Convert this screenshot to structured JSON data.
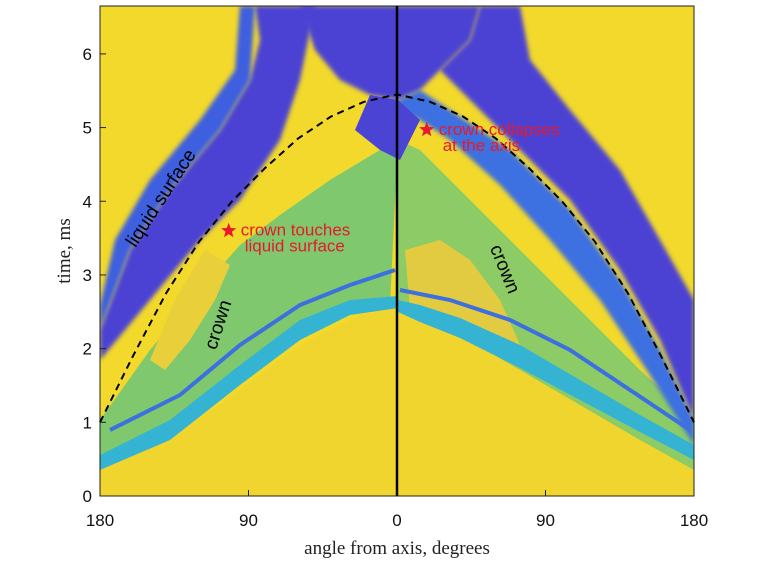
{
  "chart_data": {
    "type": "heatmap",
    "title": "",
    "xlabel": "angle from axis, degrees",
    "ylabel": "time, ms",
    "xlim": [
      -180,
      180
    ],
    "ylim": [
      0,
      6.65
    ],
    "x_ticks": [
      {
        "value": -180,
        "label": "180"
      },
      {
        "value": -90,
        "label": "90"
      },
      {
        "value": 0,
        "label": "0"
      },
      {
        "value": 90,
        "label": "90"
      },
      {
        "value": 180,
        "label": "180"
      }
    ],
    "y_ticks": [
      {
        "value": 0,
        "label": "0"
      },
      {
        "value": 1,
        "label": "1"
      },
      {
        "value": 2,
        "label": "2"
      },
      {
        "value": 3,
        "label": "3"
      },
      {
        "value": 4,
        "label": "4"
      },
      {
        "value": 5,
        "label": "5"
      },
      {
        "value": 6,
        "label": "6"
      }
    ],
    "colors": {
      "background": "#f2d92b",
      "dark_band": "#4b43d4",
      "mid_band": "#3a7ee6",
      "light_band": "#36c2c8",
      "green_band": "#8ccf67",
      "inner_fill": "#d9c84a",
      "axis_line": "#000000",
      "annotation": "#e8192c"
    },
    "liquid_surface_fit": {
      "style": "dashed",
      "x": [
        -180,
        -160,
        -140,
        -120,
        -100,
        -80,
        -60,
        -40,
        -20,
        0,
        20,
        40,
        60,
        80,
        100,
        120,
        140,
        160,
        180
      ],
      "y": [
        1.0,
        1.9,
        2.75,
        3.45,
        4.0,
        4.45,
        4.85,
        5.15,
        5.35,
        5.45,
        5.35,
        5.15,
        4.85,
        4.45,
        4.0,
        3.45,
        2.75,
        1.9,
        1.0
      ]
    },
    "markers": [
      {
        "x": -102,
        "y": 3.6,
        "shape": "star",
        "label_lines": [
          "crown touches",
          "liquid surface"
        ]
      },
      {
        "x": 18,
        "y": 4.97,
        "shape": "star",
        "label_lines": [
          "crown collapses",
          "at the axis"
        ]
      }
    ],
    "annotations": [
      {
        "text": "liquid surface",
        "x": -140,
        "y": 4.0,
        "rotation": -57
      },
      {
        "text": "crown",
        "x": -105,
        "y": 2.3,
        "rotation": -72
      },
      {
        "text": "crown",
        "x": 62,
        "y": 3.05,
        "rotation": 68
      }
    ],
    "vertical_line": {
      "x": 0
    }
  }
}
